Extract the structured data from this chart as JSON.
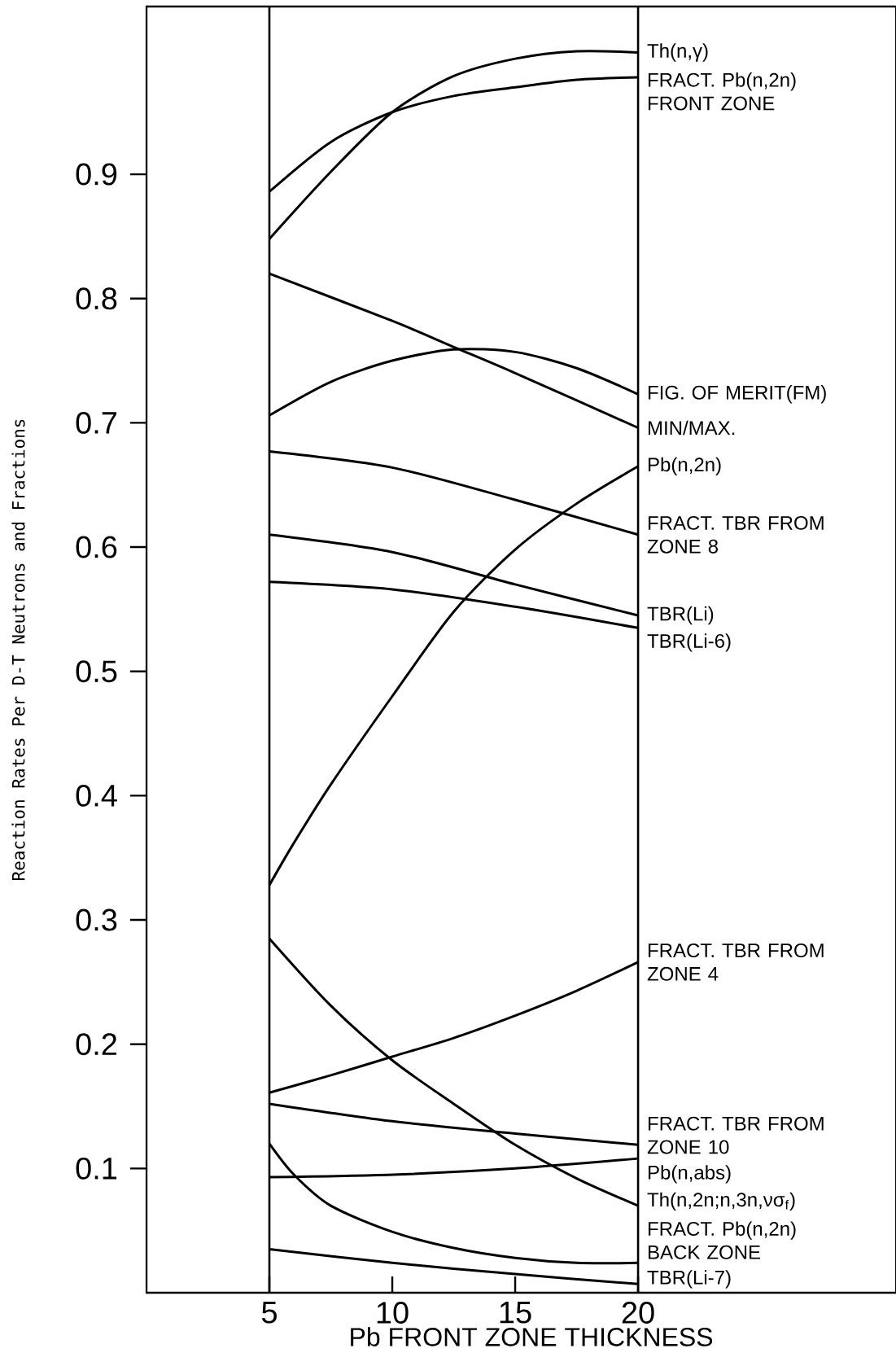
{
  "chart_data": {
    "type": "line",
    "xlabel": "Pb FRONT ZONE THICKNESS",
    "ylabel": "Reaction Rates Per D-T Neutrons and Fractions",
    "xlim": [
      0,
      30.5
    ],
    "ylim": [
      0,
      1.035
    ],
    "xticks": [
      5,
      10,
      15,
      20
    ],
    "yticks": [
      0.1,
      0.2,
      0.3,
      0.4,
      0.5,
      0.6,
      0.7,
      0.8,
      0.9
    ],
    "ref_lines": [
      {
        "axis": "x",
        "value": 5
      },
      {
        "axis": "x",
        "value": 20
      }
    ],
    "series": [
      {
        "name": "Th(n,γ)",
        "color": "#000000",
        "x": [
          5,
          7.5,
          10,
          12.5,
          15,
          17.5,
          20
        ],
        "values": [
          0.848,
          0.902,
          0.95,
          0.979,
          0.993,
          0.999,
          0.998
        ]
      },
      {
        "name": "FRACT. Pb(n,2n) FRONT ZONE",
        "color": "#000000",
        "x": [
          5,
          7.5,
          10,
          12.5,
          15,
          17.5,
          20
        ],
        "values": [
          0.886,
          0.926,
          0.95,
          0.963,
          0.97,
          0.976,
          0.978
        ]
      },
      {
        "name": "FIG. OF MERIT(FM)",
        "color": "#000000",
        "x": [
          5,
          7.5,
          10,
          12.5,
          15,
          17.5,
          20
        ],
        "values": [
          0.706,
          0.733,
          0.75,
          0.759,
          0.757,
          0.744,
          0.723
        ]
      },
      {
        "name": "MIN/MAX.",
        "color": "#000000",
        "x": [
          5,
          10,
          12.5,
          15,
          20
        ],
        "values": [
          0.82,
          0.782,
          0.761,
          0.74,
          0.696
        ]
      },
      {
        "name": "Pb(n,2n)",
        "color": "#000000",
        "x": [
          5,
          6,
          7.5,
          10,
          12.5,
          15,
          17.5,
          20
        ],
        "values": [
          0.328,
          0.362,
          0.409,
          0.48,
          0.548,
          0.598,
          0.635,
          0.665
        ]
      },
      {
        "name": "FRACT. TBR FROM ZONE 8",
        "color": "#000000",
        "x": [
          5,
          10,
          15,
          20
        ],
        "values": [
          0.677,
          0.664,
          0.638,
          0.61
        ]
      },
      {
        "name": "TBR(Li)",
        "color": "#000000",
        "x": [
          5,
          10,
          15,
          20
        ],
        "values": [
          0.61,
          0.596,
          0.57,
          0.545
        ]
      },
      {
        "name": "TBR(Li-6)",
        "color": "#000000",
        "x": [
          5,
          10,
          15,
          20
        ],
        "values": [
          0.572,
          0.566,
          0.552,
          0.535
        ]
      },
      {
        "name": "FRACT. TBR FROM ZONE 4",
        "color": "#000000",
        "x": [
          5,
          7.5,
          10,
          12.5,
          15,
          17.5,
          20
        ],
        "values": [
          0.161,
          0.175,
          0.19,
          0.205,
          0.223,
          0.243,
          0.266
        ]
      },
      {
        "name": "FRACT. TBR FROM ZONE 10",
        "color": "#000000",
        "x": [
          5,
          10,
          15,
          20
        ],
        "values": [
          0.152,
          0.138,
          0.128,
          0.119
        ]
      },
      {
        "name": "Pb(n,abs)",
        "color": "#000000",
        "x": [
          5,
          10,
          15,
          20
        ],
        "values": [
          0.093,
          0.095,
          0.1,
          0.108
        ]
      },
      {
        "name": "Th(n,2n;n,3n,νσ$_{f}$)",
        "color": "#000000",
        "x": [
          5,
          7.5,
          10,
          12.5,
          15,
          17.5,
          20
        ],
        "values": [
          0.285,
          0.231,
          0.187,
          0.152,
          0.119,
          0.092,
          0.07
        ]
      },
      {
        "name": "FRACT. Pb(n,2n) BACK ZONE",
        "color": "#000000",
        "x": [
          5,
          6,
          7.5,
          10,
          12.5,
          15,
          17.5,
          20
        ],
        "values": [
          0.12,
          0.095,
          0.07,
          0.049,
          0.036,
          0.028,
          0.024,
          0.024
        ]
      },
      {
        "name": "TBR(Li-7)",
        "color": "#000000",
        "x": [
          5,
          10,
          15,
          20
        ],
        "values": [
          0.035,
          0.024,
          0.015,
          0.007
        ]
      }
    ]
  }
}
